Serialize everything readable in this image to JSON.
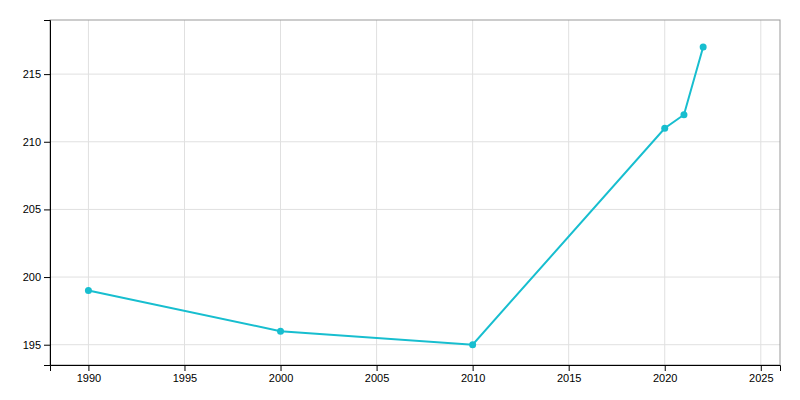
{
  "chart_data": {
    "type": "line",
    "x": [
      1990,
      2000,
      2010,
      2020,
      2021,
      2022
    ],
    "values": [
      199,
      196,
      195,
      211,
      212,
      217
    ],
    "color": "#17BECF",
    "marker": "circle",
    "xlim": [
      1988,
      2026
    ],
    "ylim": [
      193.5,
      219
    ],
    "xticks": [
      1990,
      1995,
      2000,
      2005,
      2010,
      2015,
      2020,
      2025
    ],
    "yticks": [
      195,
      200,
      205,
      210,
      215
    ],
    "grid": true
  }
}
